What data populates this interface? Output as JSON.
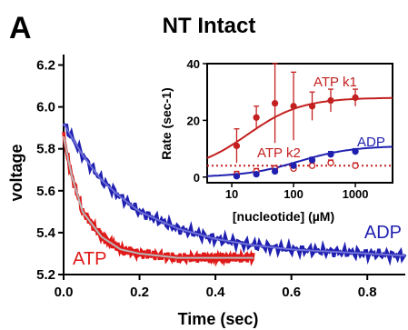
{
  "panel_label": "A",
  "chart_data": [
    {
      "type": "line",
      "title": "NT Intact",
      "xlabel": "Time (sec)",
      "ylabel": "voltage",
      "xlim": [
        0,
        0.9
      ],
      "ylim": [
        5.2,
        6.25
      ],
      "x_ticks": [
        "0.0",
        "0.2",
        "0.4",
        "0.6",
        "0.8"
      ],
      "y_ticks": [
        "5.2",
        "5.4",
        "5.6",
        "5.8",
        "6.0",
        "6.2"
      ],
      "grid": false,
      "legend": "none (series labelled in-plot)",
      "series": [
        {
          "name": "ADP",
          "color": "#1f1fb0",
          "kind": "exponential decay",
          "x": [
            0,
            0.05,
            0.1,
            0.15,
            0.2,
            0.3,
            0.4,
            0.5,
            0.6,
            0.7,
            0.8,
            0.9
          ],
          "values": [
            5.92,
            5.77,
            5.65,
            5.57,
            5.5,
            5.42,
            5.37,
            5.34,
            5.32,
            5.31,
            5.3,
            5.29
          ]
        },
        {
          "name": "ATP",
          "color": "#e01818",
          "kind": "exponential decay",
          "x": [
            0,
            0.02,
            0.05,
            0.1,
            0.15,
            0.2,
            0.3,
            0.4,
            0.5
          ],
          "values": [
            5.86,
            5.68,
            5.5,
            5.38,
            5.32,
            5.3,
            5.28,
            5.28,
            5.28
          ]
        }
      ],
      "annotations": [
        "ATP",
        "ADP"
      ]
    },
    {
      "type": "scatter",
      "xlabel": "[nucleotide] (µM)",
      "ylabel": "Rate (sec-1)",
      "xscale": "log",
      "xlim": [
        4,
        4000
      ],
      "ylim": [
        -2,
        40
      ],
      "x_ticks": [
        "10",
        "100",
        "1000"
      ],
      "y_ticks": [
        "0",
        "20",
        "40"
      ],
      "series": [
        {
          "name": "ATP k1",
          "color": "#c42020",
          "marker": "filled circle",
          "fit": "hyperbolic, solid",
          "x": [
            12,
            25,
            50,
            100,
            200,
            400,
            1000
          ],
          "values": [
            11,
            21,
            26,
            25,
            25,
            27,
            28
          ],
          "errors": [
            6,
            4,
            14,
            12,
            5,
            4,
            3
          ]
        },
        {
          "name": "ATP k2",
          "color": "#c42020",
          "marker": "open circle",
          "fit": "dotted",
          "x": [
            12,
            25,
            50,
            100,
            200,
            400,
            1000
          ],
          "values": [
            1,
            2,
            3,
            3,
            4,
            5,
            4
          ],
          "errors": [
            1,
            1,
            1,
            1,
            1,
            1,
            1
          ]
        },
        {
          "name": "ADP",
          "color": "#1f1fb0",
          "marker": "filled circle",
          "fit": "hyperbolic, solid",
          "x": [
            12,
            25,
            50,
            100,
            200,
            400,
            1000
          ],
          "values": [
            0.3,
            1,
            2,
            4,
            6,
            8,
            9
          ],
          "errors": [
            0.5,
            0.5,
            1,
            1,
            1,
            1,
            1
          ]
        }
      ]
    }
  ]
}
